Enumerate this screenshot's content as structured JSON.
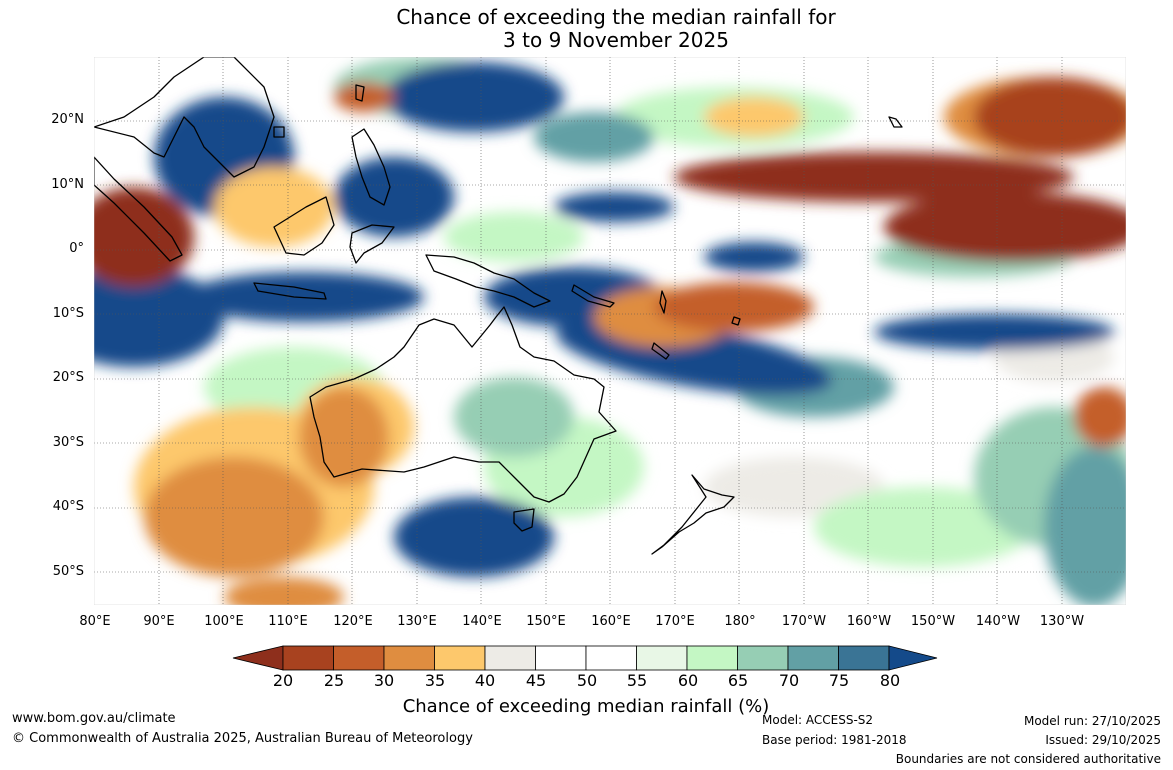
{
  "title": {
    "line1": "Chance of exceeding the median rainfall for",
    "line2": "3 to 9 November 2025"
  },
  "map": {
    "lat_labels": [
      "20°N",
      "10°N",
      "0°",
      "10°S",
      "20°S",
      "30°S",
      "40°S",
      "50°S"
    ],
    "lon_labels": [
      "80°E",
      "90°E",
      "100°E",
      "110°E",
      "120°E",
      "130°E",
      "140°E",
      "150°E",
      "160°E",
      "170°E",
      "180°",
      "170°W",
      "160°W",
      "150°W",
      "140°W",
      "130°W"
    ],
    "lat_range": [
      -55,
      30
    ],
    "lon_range": [
      80,
      240
    ]
  },
  "colorbar": {
    "title": "Chance of exceeding median rainfall (%)",
    "tick_labels": [
      "20",
      "25",
      "30",
      "35",
      "40",
      "45",
      "50",
      "55",
      "60",
      "65",
      "70",
      "75",
      "80"
    ],
    "colors": [
      "#8e2f1c",
      "#a8421f",
      "#c45e2a",
      "#df8d40",
      "#fdc86c",
      "#edebe6",
      "#ffffff",
      "#ffffff",
      "#e8f7e6",
      "#c4f7c4",
      "#96ceb4",
      "#62a0a5",
      "#3a7495",
      "#144a8a"
    ]
  },
  "footer": {
    "url": "www.bom.gov.au/climate",
    "copyright": "© Commonwealth of Australia 2025, Australian Bureau of Meteorology",
    "model": "Model: ACCESS-S2",
    "base_period": "Base period: 1981-2018",
    "model_run": "Model run: 27/10/2025",
    "issued": "Issued: 29/10/2025",
    "boundaries": "Boundaries are not considered authoritative"
  }
}
